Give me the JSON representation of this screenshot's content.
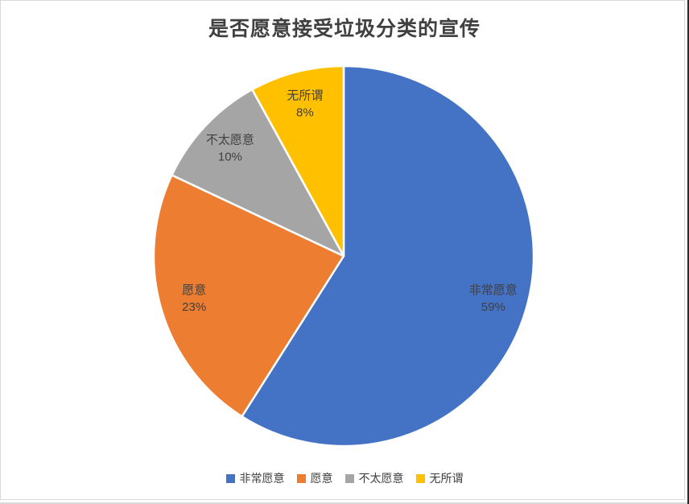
{
  "page": {
    "title": "是否愿意接受垃圾分类的宣传"
  },
  "chart_data": {
    "type": "pie",
    "title": "是否愿意接受垃圾分类的宣传",
    "categories": [
      "非常愿意",
      "愿意",
      "不太愿意",
      "无所谓"
    ],
    "values": [
      59,
      23,
      10,
      8
    ],
    "value_labels": [
      "59%",
      "23%",
      "10%",
      "8%"
    ],
    "unit": "%",
    "colors": [
      "#4472C4",
      "#ED7D31",
      "#A5A5A5",
      "#FFC000"
    ],
    "start_angle_deg": 0,
    "direction": "clockwise",
    "slice_label_style": "category-and-percent-inside",
    "label_color": "#404040",
    "title_color": "#404040",
    "separator_color": "#ffffff",
    "legend": {
      "position": "bottom",
      "entries": [
        "非常愿意",
        "愿意",
        "不太愿意",
        "无所谓"
      ]
    }
  }
}
